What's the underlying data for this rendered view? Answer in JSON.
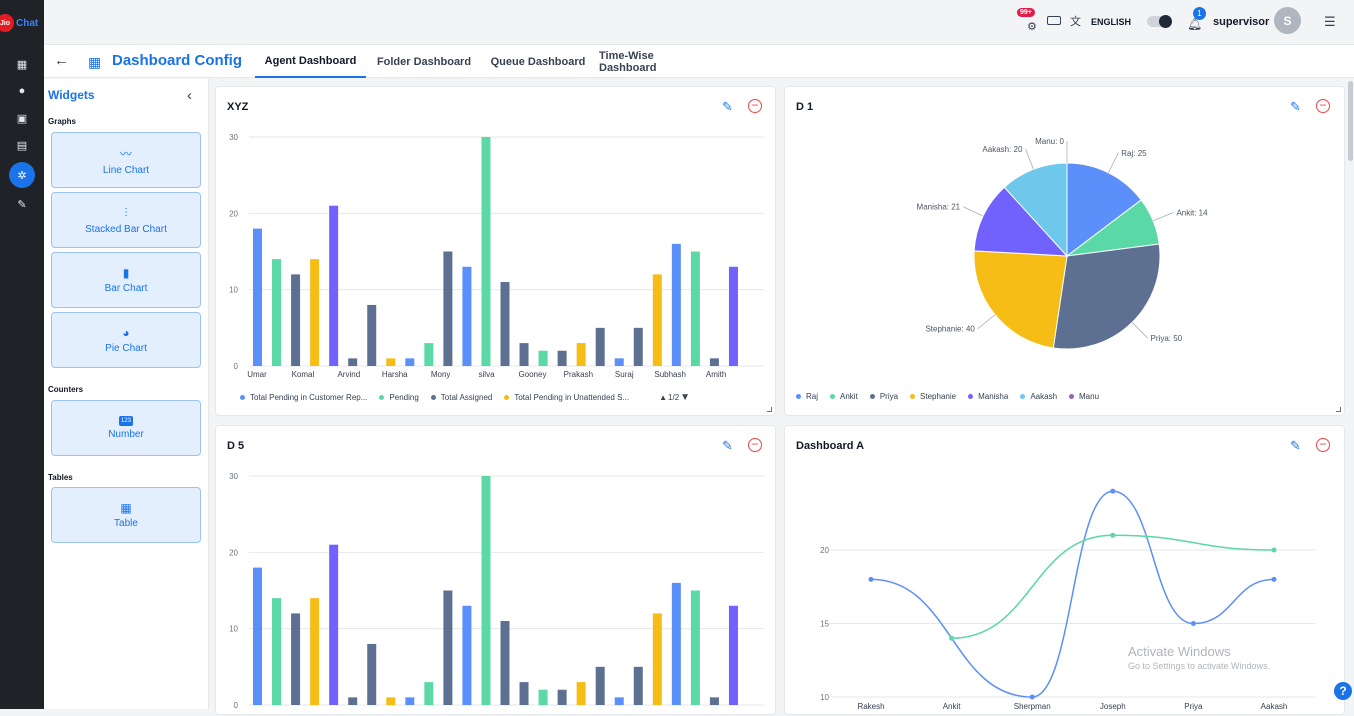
{
  "app": {
    "logo_text": "Jio",
    "logo_suffix": "Chat"
  },
  "header": {
    "badge_count": "99+",
    "language_label": "ENGLISH",
    "notification_count": "1",
    "user_name": "supervisor",
    "avatar_initial": "S"
  },
  "page": {
    "title": "Dashboard Config",
    "tabs": [
      "Agent Dashboard",
      "Folder Dashboard",
      "Queue Dashboard",
      "Time-Wise Dashboard"
    ],
    "active_tab": "Agent Dashboard"
  },
  "sidebar": {
    "title": "Widgets",
    "graphs_label": "Graphs",
    "graphs": [
      "Line Chart",
      "Stacked Bar Chart",
      "Bar Chart",
      "Pie Chart"
    ],
    "counters_label": "Counters",
    "counters": [
      "Number"
    ],
    "tables_label": "Tables",
    "tables": [
      "Table"
    ]
  },
  "watermark": {
    "line1": "Activate Windows",
    "line2": "Go to Settings to activate Windows."
  },
  "colors": {
    "blue": "#5b8ff9",
    "green": "#5ad8a6",
    "slate": "#5d7092",
    "yellow": "#f6bd16",
    "purple": "#7262fd",
    "sky": "#6dc8ec",
    "violet": "#9661bc"
  },
  "chart_data": [
    {
      "title": "XYZ",
      "type": "bar",
      "categories": [
        "Umar",
        "Komal",
        "Arvind",
        "Harsha",
        "Mony",
        "silva",
        "Gooney",
        "Prakash",
        "Suraj",
        "Subhash",
        "Amith"
      ],
      "bars": [
        [
          "blue",
          18
        ],
        [
          "green",
          14
        ],
        [
          "slate",
          12
        ],
        [
          "yellow",
          14
        ],
        [
          "purple",
          21
        ],
        [
          "slate",
          1
        ],
        [
          "slate",
          8
        ],
        [
          "yellow",
          1
        ],
        [
          "blue",
          1
        ],
        [
          "green",
          3
        ],
        [
          "slate",
          15
        ],
        [
          "blue",
          13
        ],
        [
          "green",
          30
        ],
        [
          "slate",
          11
        ],
        [
          "slate",
          3
        ],
        [
          "green",
          2
        ],
        [
          "slate",
          2
        ],
        [
          "yellow",
          3
        ],
        [
          "slate",
          5
        ],
        [
          "blue",
          1
        ],
        [
          "slate",
          5
        ],
        [
          "yellow",
          12
        ],
        [
          "blue",
          16
        ],
        [
          "green",
          15
        ],
        [
          "slate",
          1
        ],
        [
          "purple",
          13
        ]
      ],
      "ylim": [
        0,
        30
      ],
      "yticks": [
        0,
        10,
        20,
        30
      ],
      "legend": [
        "Total Pending in Customer Rep...",
        "Pending",
        "Total Assigned",
        "Total Pending in Unattended S..."
      ],
      "legend_page": "1/2"
    },
    {
      "title": "D 1",
      "type": "pie",
      "slices": [
        {
          "label": "Raj",
          "value": 25,
          "color": "#5b8ff9"
        },
        {
          "label": "Ankit",
          "value": 14,
          "color": "#5ad8a6"
        },
        {
          "label": "Priya",
          "value": 50,
          "color": "#5d7092"
        },
        {
          "label": "Stephanie",
          "value": 40,
          "color": "#f6bd16"
        },
        {
          "label": "Manisha",
          "value": 21,
          "color": "#7262fd"
        },
        {
          "label": "Aakash",
          "value": 20,
          "color": "#6dc8ec"
        },
        {
          "label": "Manu",
          "value": 0,
          "color": "#9661bc"
        }
      ]
    },
    {
      "title": "D 5",
      "type": "bar",
      "ylim": [
        0,
        30
      ],
      "yticks": [
        0,
        10,
        20,
        30
      ],
      "same_as": "XYZ"
    },
    {
      "title": "Dashboard A",
      "type": "line",
      "categories": [
        "Rakesh",
        "Ankit",
        "Sherpman",
        "Joseph",
        "Priya",
        "Aakash"
      ],
      "series": [
        {
          "values": [
            18,
            null,
            10,
            24,
            15,
            18
          ],
          "color": "#5b8ff9"
        },
        {
          "values": [
            null,
            14,
            null,
            21,
            null,
            20
          ],
          "color": "#5ad8a6"
        }
      ],
      "yticks": [
        10,
        15,
        20
      ]
    }
  ]
}
